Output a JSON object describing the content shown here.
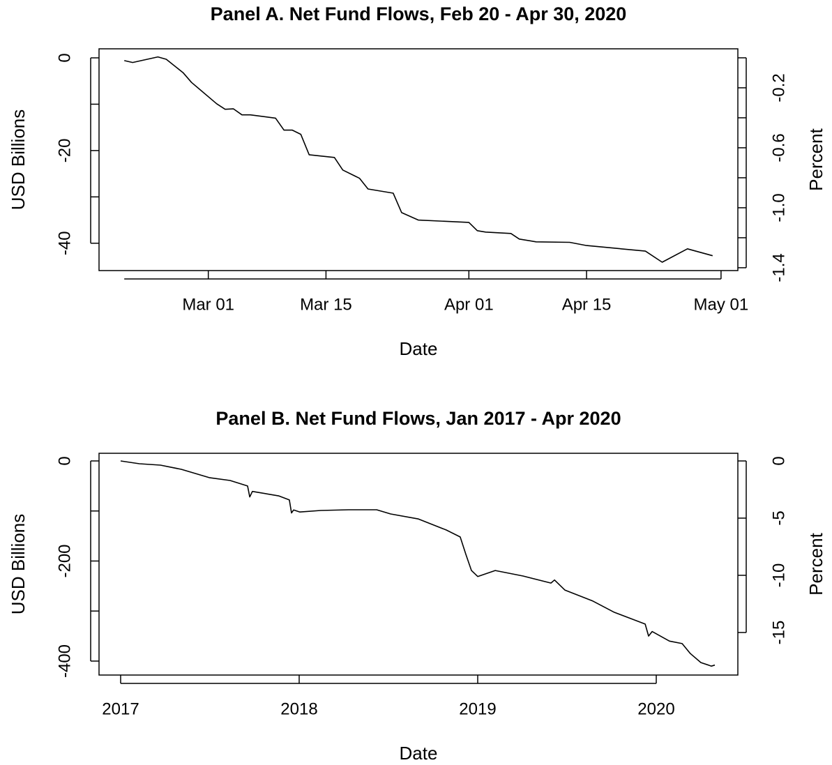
{
  "chart_data": [
    {
      "type": "line",
      "title": "Panel A. Net Fund Flows, Feb 20 - Apr 30, 2020",
      "xlabel": "Date",
      "ylabel": "USD Billions",
      "y2label": "Percent",
      "color": "#000000",
      "x": [
        "02-20",
        "02-21",
        "02-24",
        "02-25",
        "02-27",
        "02-28",
        "03-02",
        "03-03",
        "03-04",
        "03-05",
        "03-06",
        "03-09",
        "03-10",
        "03-11",
        "03-12",
        "03-13",
        "03-16",
        "03-17",
        "03-19",
        "03-20",
        "03-23",
        "03-24",
        "03-26",
        "04-01",
        "04-02",
        "04-03",
        "04-06",
        "04-07",
        "04-09",
        "04-13",
        "04-15",
        "04-22",
        "04-24",
        "04-27",
        "04-30"
      ],
      "values": [
        -0.6,
        -1.0,
        0.2,
        -0.3,
        -3.2,
        -5.3,
        -9.9,
        -11.1,
        -11.0,
        -12.3,
        -12.3,
        -13.0,
        -15.6,
        -15.6,
        -16.5,
        -20.9,
        -21.5,
        -24.2,
        -26.0,
        -28.3,
        -29.2,
        -33.4,
        -35.0,
        -35.5,
        -37.3,
        -37.6,
        -37.9,
        -39.1,
        -39.7,
        -39.8,
        -40.5,
        -41.7,
        -44.1,
        -41.2,
        -42.7
      ],
      "xlim": [
        "02-17",
        "05-03"
      ],
      "xticks": [
        {
          "value": "03-01",
          "label": "Mar 01"
        },
        {
          "value": "03-15",
          "label": "Mar 15"
        },
        {
          "value": "04-01",
          "label": "Apr 01"
        },
        {
          "value": "04-15",
          "label": "Apr 15"
        },
        {
          "value": "05-01",
          "label": "May 01"
        }
      ],
      "ylim": [
        -45.9,
        1.95
      ],
      "yticks": [
        0,
        -20,
        -40
      ],
      "yminorticks": [
        -10,
        -30
      ],
      "y2lim": [
        -1.419,
        0.06
      ],
      "y2ticks": [
        -0.2,
        -0.6,
        {
          "value": -1,
          "label": "-1.0"
        },
        -1.4
      ],
      "y2minorticks": [
        0,
        -0.4,
        -0.8,
        -1.2
      ]
    },
    {
      "type": "line",
      "title": "Panel B. Net Fund Flows, Jan 2017 - Apr 2020",
      "xlabel": "Date",
      "ylabel": "USD Billions",
      "y2label": "Percent",
      "color": "#000000",
      "x": [
        2017.0,
        2017.105,
        2017.223,
        2017.34,
        2017.496,
        2017.613,
        2017.711,
        2017.723,
        2017.738,
        2017.887,
        2017.945,
        2017.957,
        2017.969,
        2018.004,
        2018.121,
        2018.277,
        2018.434,
        2018.512,
        2018.668,
        2018.824,
        2018.902,
        2018.934,
        2018.965,
        2019.0,
        2019.098,
        2019.254,
        2019.41,
        2019.43,
        2019.488,
        2019.645,
        2019.762,
        2019.938,
        2019.957,
        2019.977,
        2020.074,
        2020.145,
        2020.191,
        2020.25,
        2020.309,
        2020.328
      ],
      "values": [
        0,
        -5.6,
        -8.4,
        -16.7,
        -33.4,
        -39,
        -50,
        -72,
        -61,
        -70,
        -78,
        -104,
        -98,
        -102,
        -99,
        -97.6,
        -97.6,
        -106,
        -116,
        -138,
        -152,
        -187,
        -219,
        -231,
        -219,
        -230,
        -244,
        -238,
        -258,
        -280,
        -302,
        -326,
        -350,
        -341,
        -360,
        -365,
        -385,
        -403,
        -410,
        -408
      ],
      "xlim": [
        2016.879,
        2020.457
      ],
      "xticks": [
        2017,
        2018,
        2019,
        2020
      ],
      "ylim": [
        -427.9,
        15.3
      ],
      "yticks": [
        0,
        -200,
        -400
      ],
      "yminorticks": [
        -100,
        -300
      ],
      "y2lim": [
        -18.72,
        0.67
      ],
      "y2ticks": [
        0,
        -5,
        -10,
        -15
      ]
    }
  ]
}
